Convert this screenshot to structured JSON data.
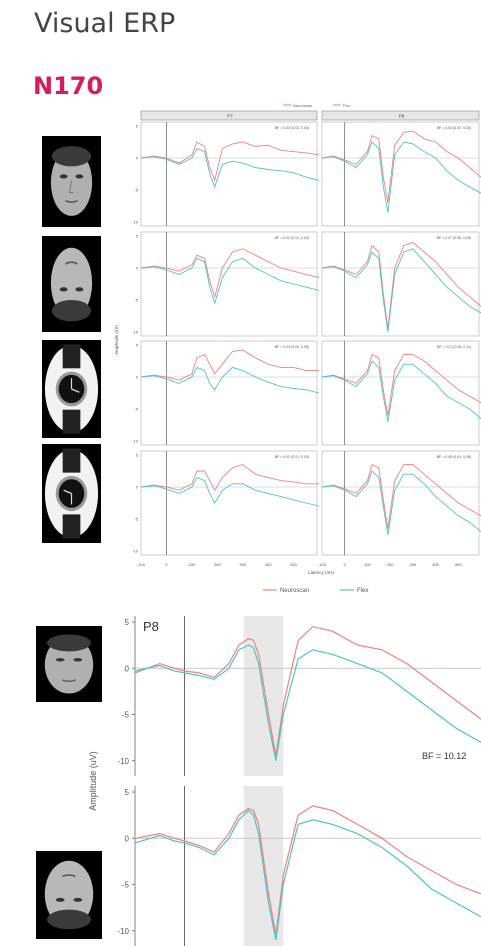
{
  "header": {
    "title": "Visual ERP",
    "section": "N170"
  },
  "stimuli": [
    {
      "icon": "upright-face-image"
    },
    {
      "icon": "inverted-face-image"
    },
    {
      "icon": "upright-watch-image"
    },
    {
      "icon": "inverted-watch-image"
    }
  ],
  "colors": {
    "neuroscan": "#f08080",
    "flex": "#4fc4c4",
    "strip_bg": "#e6e6e6",
    "window_shade": "#e8e8e8",
    "accent": "#d81b60"
  },
  "chart_data": [
    {
      "type": "line",
      "facets": [
        "P7",
        "P8"
      ],
      "ylabel": "Amplitude (uV)",
      "xlabel": "Latency (ms)",
      "xlim": [
        -100,
        600
      ],
      "ylim": [
        -10,
        5
      ],
      "xticks": [
        -100,
        0,
        100,
        200,
        300,
        400,
        500
      ],
      "yticks": [
        5,
        0,
        -5,
        -10
      ],
      "grid": false,
      "legend_position": "top and bottom",
      "legend": [
        "Neuroscan",
        "Flex"
      ],
      "x": [
        -100,
        -50,
        0,
        50,
        100,
        120,
        150,
        170,
        190,
        220,
        260,
        300,
        350,
        400,
        450,
        500,
        550,
        600
      ],
      "panels": [
        {
          "row": 1,
          "facet": "P7",
          "bf_label": "BF = 0.03 (0.02, 0.04)",
          "series": [
            {
              "name": "Neuroscan",
              "values": [
                0,
                0.3,
                0,
                -0.8,
                0.5,
                2.5,
                1.8,
                -1.5,
                -3.5,
                1.5,
                2.2,
                2.5,
                1.8,
                2.0,
                1.2,
                1.0,
                0.8,
                0.5
              ]
            },
            {
              "name": "Flex",
              "values": [
                0,
                0.2,
                -0.2,
                -1.0,
                0,
                1.5,
                1.0,
                -2.5,
                -4.5,
                -1.0,
                -0.5,
                -0.8,
                -1.5,
                -1.8,
                -2.0,
                -2.3,
                -3.0,
                -3.5
              ]
            }
          ]
        },
        {
          "row": 1,
          "facet": "P8",
          "bf_label": "BF = 0.03 (0.02, 0.04)",
          "series": [
            {
              "name": "Neuroscan",
              "values": [
                0,
                0.3,
                -0.3,
                -1.0,
                1.0,
                3.5,
                3.0,
                -3.0,
                -7.0,
                2.0,
                4.0,
                4.2,
                3.0,
                2.5,
                1.0,
                0,
                -1.5,
                -3.0
              ]
            },
            {
              "name": "Flex",
              "values": [
                0,
                0.2,
                -0.5,
                -1.5,
                0.5,
                2.5,
                1.5,
                -4.5,
                -8.5,
                0.5,
                2.5,
                2.2,
                1.0,
                0,
                -2.0,
                -3.5,
                -4.5,
                -5.5
              ]
            }
          ]
        },
        {
          "row": 2,
          "facet": "P7",
          "bf_label": "BF = 0.02 (0.01, 0.03)",
          "series": [
            {
              "name": "Neuroscan",
              "values": [
                0,
                0.3,
                0,
                -0.5,
                0.5,
                2.0,
                1.5,
                -2.0,
                -4.5,
                0,
                2.5,
                3.0,
                2.0,
                1.0,
                0,
                -0.5,
                -1.0,
                -1.5
              ]
            },
            {
              "name": "Flex",
              "values": [
                0,
                0.2,
                -0.3,
                -1.0,
                0,
                1.5,
                1.0,
                -3.0,
                -5.5,
                -1.5,
                1.0,
                1.5,
                0,
                -1.0,
                -2.0,
                -2.5,
                -3.0,
                -3.5
              ]
            }
          ]
        },
        {
          "row": 2,
          "facet": "P8",
          "bf_label": "BF = 0.07 (0.05, 0.09)",
          "series": [
            {
              "name": "Neuroscan",
              "values": [
                0,
                0.3,
                -0.3,
                -1.0,
                1.0,
                3.5,
                2.5,
                -4.0,
                -9.5,
                0,
                3.5,
                4.0,
                2.5,
                1.0,
                -1.0,
                -3.0,
                -4.5,
                -6.0
              ]
            },
            {
              "name": "Flex",
              "values": [
                0,
                0.2,
                -0.5,
                -1.5,
                0.5,
                2.5,
                1.5,
                -5.0,
                -10.0,
                -1.0,
                2.5,
                3.0,
                1.0,
                -1.0,
                -3.0,
                -4.5,
                -6.0,
                -7.0
              ]
            }
          ]
        },
        {
          "row": 3,
          "facet": "P7",
          "bf_label": "BF = 0.03 (0.02, 0.05)",
          "series": [
            {
              "name": "Neuroscan",
              "values": [
                0,
                0.3,
                0,
                -0.5,
                0.5,
                3.0,
                3.5,
                2.0,
                0.5,
                2.0,
                4.0,
                4.2,
                3.0,
                2.0,
                1.5,
                1.5,
                1.0,
                1.0
              ]
            },
            {
              "name": "Flex",
              "values": [
                0,
                0.2,
                -0.3,
                -1.0,
                0,
                1.5,
                1.0,
                -1.0,
                -2.0,
                0,
                1.5,
                1.0,
                0,
                -0.8,
                -1.5,
                -1.8,
                -2.0,
                -2.5
              ]
            }
          ]
        },
        {
          "row": 3,
          "facet": "P8",
          "bf_label": "BF = 0.07 (0.05, 0.11)",
          "series": [
            {
              "name": "Neuroscan",
              "values": [
                0,
                0.3,
                -0.3,
                -1.0,
                1.0,
                3.5,
                3.0,
                -2.0,
                -6.0,
                1.0,
                3.5,
                3.5,
                2.5,
                1.0,
                -0.5,
                -2.0,
                -3.0,
                -4.0
              ]
            },
            {
              "name": "Flex",
              "values": [
                0,
                0.2,
                -0.5,
                -1.5,
                0.5,
                2.5,
                1.5,
                -3.0,
                -7.0,
                -0.5,
                2.0,
                2.0,
                0.5,
                -1.0,
                -3.0,
                -4.0,
                -5.0,
                -6.5
              ]
            }
          ]
        },
        {
          "row": 4,
          "facet": "P7",
          "bf_label": "BF = 0.02 (0.01, 0.03)",
          "series": [
            {
              "name": "Neuroscan",
              "values": [
                0,
                0.3,
                0,
                -0.5,
                0.5,
                2.5,
                2.5,
                1.0,
                -0.5,
                1.5,
                3.0,
                3.5,
                2.0,
                1.5,
                1.0,
                0.8,
                0.5,
                0.5
              ]
            },
            {
              "name": "Flex",
              "values": [
                0,
                0.2,
                -0.3,
                -1.0,
                0,
                1.5,
                1.0,
                -1.0,
                -2.5,
                -0.5,
                0.5,
                0.5,
                -0.5,
                -1.0,
                -1.5,
                -2.0,
                -2.5,
                -3.0
              ]
            }
          ]
        },
        {
          "row": 4,
          "facet": "P8",
          "bf_label": "BF = 0.05 (0.03, 0.08)",
          "series": [
            {
              "name": "Neuroscan",
              "values": [
                0,
                0.3,
                -0.3,
                -1.0,
                1.0,
                3.5,
                3.0,
                -2.0,
                -6.5,
                1.0,
                3.5,
                3.5,
                2.0,
                0.5,
                -1.0,
                -2.5,
                -3.5,
                -4.5
              ]
            },
            {
              "name": "Flex",
              "values": [
                0,
                0.2,
                -0.5,
                -1.5,
                0.5,
                2.5,
                1.5,
                -3.0,
                -7.5,
                -0.5,
                2.0,
                2.0,
                0.5,
                -1.5,
                -3.0,
                -4.5,
                -5.5,
                -7.0
              ]
            }
          ]
        }
      ]
    },
    {
      "type": "line",
      "facet": "P8",
      "ylabel": "Amplitude (uV)",
      "ylim": [
        -11,
        5
      ],
      "yticks": [
        5,
        0,
        -5,
        -10
      ],
      "xlim": [
        -100,
        600
      ],
      "grid": false,
      "annotation": "BF = 10.12",
      "shaded_window_ms": [
        120,
        200
      ],
      "x": [
        -100,
        -50,
        -20,
        0,
        30,
        60,
        90,
        110,
        130,
        140,
        150,
        170,
        185,
        200,
        230,
        260,
        300,
        350,
        400,
        450,
        500,
        550,
        600
      ],
      "panels": [
        {
          "stimulus": "upright face",
          "series": [
            {
              "name": "Neuroscan",
              "values": [
                -0.5,
                0.5,
                0,
                -0.3,
                -0.5,
                -1.0,
                0.5,
                2.5,
                3.2,
                3.0,
                1.5,
                -5.0,
                -9.5,
                -4.0,
                3.0,
                4.5,
                4.0,
                2.5,
                2.0,
                0.5,
                -1.5,
                -3.5,
                -5.5
              ]
            },
            {
              "name": "Flex",
              "values": [
                -0.3,
                0.3,
                -0.3,
                -0.5,
                -0.8,
                -1.2,
                0,
                2.0,
                2.5,
                2.2,
                0.5,
                -6.0,
                -10.0,
                -5.0,
                1.0,
                2.0,
                1.5,
                0.5,
                -0.5,
                -2.5,
                -4.5,
                -6.5,
                -8.0
              ]
            }
          ]
        },
        {
          "stimulus": "inverted face",
          "series": [
            {
              "name": "Neuroscan",
              "values": [
                0,
                0.5,
                0,
                -0.3,
                -0.8,
                -1.5,
                0.5,
                2.5,
                3.2,
                3.0,
                1.5,
                -6.0,
                -10.5,
                -4.0,
                2.5,
                3.5,
                3.0,
                1.5,
                0,
                -2.0,
                -3.5,
                -5.0,
                -6.0
              ]
            },
            {
              "name": "Flex",
              "values": [
                -0.5,
                0.3,
                -0.3,
                -0.5,
                -1.0,
                -1.8,
                0,
                2.0,
                3.0,
                2.5,
                0.5,
                -7.0,
                -11.0,
                -5.0,
                1.5,
                2.0,
                1.5,
                0.5,
                -1.0,
                -3.0,
                -5.5,
                -7.0,
                -8.5
              ]
            }
          ]
        }
      ]
    }
  ]
}
